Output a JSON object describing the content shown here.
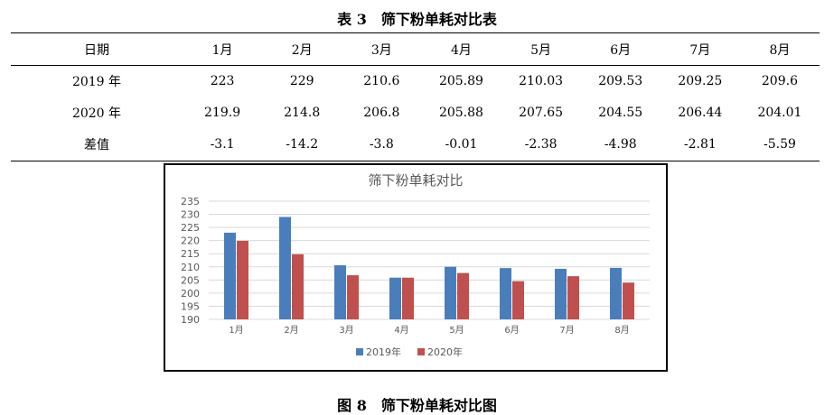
{
  "table_title": "表 3　筛下粉单耗对比表",
  "figure_caption": "图 8　筛下粉单耗对比图",
  "table": {
    "header": [
      "日期",
      "1月",
      "2月",
      "3月",
      "4月",
      "5月",
      "6月",
      "7月",
      "8月"
    ],
    "rows": [
      [
        "2019 年",
        "223",
        "229",
        "210.6",
        "205.89",
        "210.03",
        "209.53",
        "209.25",
        "209.6"
      ],
      [
        "2020 年",
        "219.9",
        "214.8",
        "206.8",
        "205.88",
        "207.65",
        "204.55",
        "206.44",
        "204.01"
      ],
      [
        "差值",
        "-3.1",
        "-14.2",
        "-3.8",
        "-0.01",
        "-2.38",
        "-4.98",
        "-2.81",
        "-5.59"
      ]
    ]
  },
  "colors": {
    "series_2019": "#4a7ebb",
    "series_2020": "#c0504d",
    "grid": "#d9d9d9",
    "axis_text": "#595959"
  },
  "chart_data": {
    "type": "bar",
    "title": "筛下粉单耗对比",
    "categories": [
      "1月",
      "2月",
      "3月",
      "4月",
      "5月",
      "6月",
      "7月",
      "8月"
    ],
    "series": [
      {
        "name": "2019年",
        "values": [
          223,
          229,
          210.6,
          205.89,
          210.03,
          209.53,
          209.25,
          209.6
        ]
      },
      {
        "name": "2020年",
        "values": [
          219.9,
          214.8,
          206.8,
          205.88,
          207.65,
          204.55,
          206.44,
          204.01
        ]
      }
    ],
    "yticks": [
      190,
      195,
      200,
      205,
      210,
      215,
      220,
      225,
      230,
      235
    ],
    "ylim": [
      190,
      235
    ],
    "grid": true,
    "legend": "bottom"
  }
}
